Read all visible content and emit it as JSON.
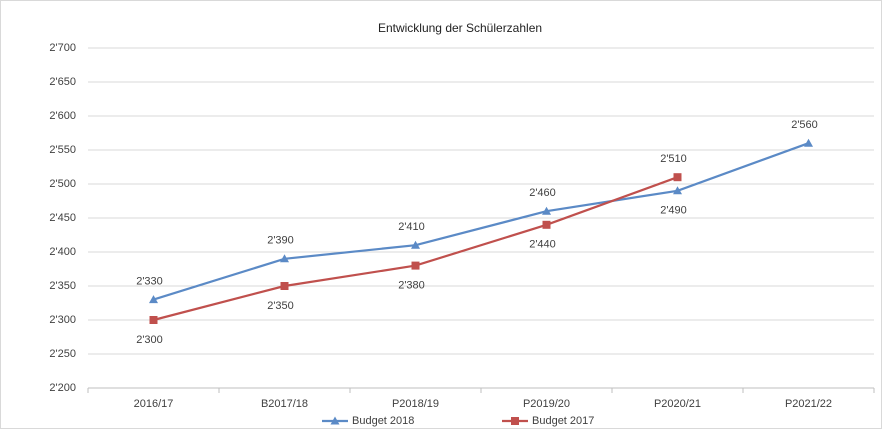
{
  "chart_data": {
    "type": "line",
    "title": "Entwicklung der Schülerzahlen",
    "categories": [
      "2016/17",
      "B2017/18",
      "P2018/19",
      "P2019/20",
      "P2020/21",
      "P2021/22"
    ],
    "series": [
      {
        "name": "Budget 2018",
        "color": "#5b8ac6",
        "marker": "triangle",
        "values": [
          2330,
          2390,
          2410,
          2460,
          2490,
          2560
        ],
        "value_labels": [
          "2'330",
          "2'390",
          "2'410",
          "2'460",
          "2'490",
          "2'560"
        ]
      },
      {
        "name": "Budget 2017",
        "color": "#c0504d",
        "marker": "square",
        "values": [
          2300,
          2350,
          2380,
          2440,
          2510,
          null
        ],
        "value_labels": [
          "2'300",
          "2'350",
          "2'380",
          "2'440",
          "2'510",
          null
        ]
      }
    ],
    "ylim": [
      2200,
      2700
    ],
    "yticks": [
      {
        "value": 2200,
        "label": "2'200"
      },
      {
        "value": 2250,
        "label": "2'250"
      },
      {
        "value": 2300,
        "label": "2'300"
      },
      {
        "value": 2350,
        "label": "2'350"
      },
      {
        "value": 2400,
        "label": "2'400"
      },
      {
        "value": 2450,
        "label": "2'450"
      },
      {
        "value": 2500,
        "label": "2'500"
      },
      {
        "value": 2550,
        "label": "2'550"
      },
      {
        "value": 2600,
        "label": "2'600"
      },
      {
        "value": 2650,
        "label": "2'650"
      },
      {
        "value": 2700,
        "label": "2'700"
      }
    ],
    "grid": true,
    "legend": "bottom"
  }
}
